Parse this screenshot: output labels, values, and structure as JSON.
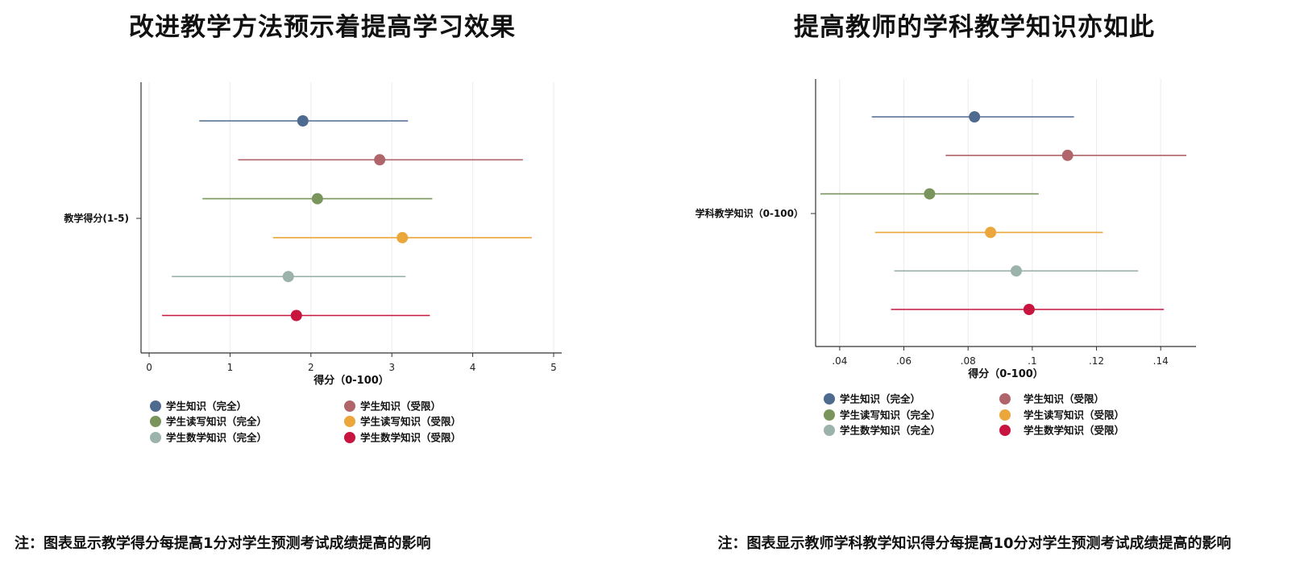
{
  "colors": [
    "#4e6a8f",
    "#b0656b",
    "#7a955c",
    "#eba63c",
    "#9cb3ab",
    "#c8153f"
  ],
  "panels": [
    {
      "title": "改进教学方法预示着提高学习效果",
      "note": "注：图表显示教学得分每提高1分对学生预测考试成绩提高的影响"
    },
    {
      "title": "提高教师的学科教学知识亦如此",
      "note": "注：图表显示教师学科教学知识得分每提高10分对学生预测考试成绩提高的影响"
    }
  ],
  "chart_data": [
    {
      "type": "scatter",
      "title": "改进教学方法预示着提高学习效果",
      "xlabel": "得分（0-100）",
      "ylabel": "",
      "category_label": "教学得分(1-5)",
      "xlim": [
        -0.1,
        5.1
      ],
      "xticks": [
        0,
        1,
        2,
        3,
        4,
        5
      ],
      "xtick_labels": [
        "0",
        "1",
        "2",
        "3",
        "4",
        "5"
      ],
      "grid": true,
      "legend_position": "bottom",
      "series": [
        {
          "name": "学生知识（完全）",
          "estimate": 1.9,
          "ci_low": 0.62,
          "ci_high": 3.2
        },
        {
          "name": "学生知识（受限）",
          "estimate": 2.85,
          "ci_low": 1.1,
          "ci_high": 4.62
        },
        {
          "name": "学生读写知识（完全）",
          "estimate": 2.08,
          "ci_low": 0.66,
          "ci_high": 3.5
        },
        {
          "name": "学生读写知识（受限）",
          "estimate": 3.13,
          "ci_low": 1.53,
          "ci_high": 4.73
        },
        {
          "name": "学生数学知识（完全）",
          "estimate": 1.72,
          "ci_low": 0.28,
          "ci_high": 3.17
        },
        {
          "name": "学生数学知识（受限）",
          "estimate": 1.82,
          "ci_low": 0.16,
          "ci_high": 3.47
        }
      ]
    },
    {
      "type": "scatter",
      "title": "提高教师的学科教学知识亦如此",
      "xlabel": "得分（0-100）",
      "ylabel": "",
      "category_label": "学科教学知识（0-100）",
      "xlim": [
        0.0325,
        0.151
      ],
      "xticks": [
        0.04,
        0.06,
        0.08,
        0.1,
        0.12,
        0.14
      ],
      "xtick_labels": [
        ".04",
        ".06",
        ".08",
        ".1",
        ".12",
        ".14"
      ],
      "grid": true,
      "legend_position": "bottom",
      "series": [
        {
          "name": "学生知识（完全）",
          "estimate": 0.082,
          "ci_low": 0.05,
          "ci_high": 0.113
        },
        {
          "name": "学生知识（受限）",
          "estimate": 0.111,
          "ci_low": 0.073,
          "ci_high": 0.148
        },
        {
          "name": "学生读写知识（完全）",
          "estimate": 0.068,
          "ci_low": 0.034,
          "ci_high": 0.102
        },
        {
          "name": "学生读写知识（受限）",
          "estimate": 0.087,
          "ci_low": 0.051,
          "ci_high": 0.122
        },
        {
          "name": "学生数学知识（完全）",
          "estimate": 0.095,
          "ci_low": 0.057,
          "ci_high": 0.133
        },
        {
          "name": "学生数学知识（受限）",
          "estimate": 0.099,
          "ci_low": 0.056,
          "ci_high": 0.141
        }
      ]
    }
  ]
}
